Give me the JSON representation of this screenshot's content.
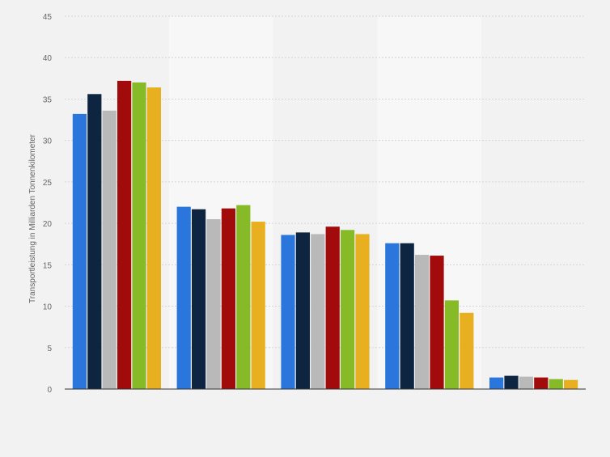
{
  "chart_data": {
    "type": "bar",
    "title": "",
    "xlabel": "",
    "ylabel": "Transportleistung in Milliarden Tonnenkilometer",
    "ylim": [
      0,
      45
    ],
    "yticks": [
      0,
      5,
      10,
      15,
      20,
      25,
      30,
      35,
      40,
      45
    ],
    "grid": true,
    "legend": "none",
    "categories": [
      "",
      "",
      "",
      "",
      ""
    ],
    "series": [
      {
        "color": "#2a76dd",
        "values": [
          33.2,
          22.0,
          18.6,
          17.6,
          1.4
        ]
      },
      {
        "color": "#0d2540",
        "values": [
          35.6,
          21.7,
          18.9,
          17.6,
          1.6
        ]
      },
      {
        "color": "#b9b9b9",
        "values": [
          33.6,
          20.5,
          18.7,
          16.2,
          1.5
        ]
      },
      {
        "color": "#a20b0b",
        "values": [
          37.2,
          21.8,
          19.6,
          16.1,
          1.4
        ]
      },
      {
        "color": "#86ba27",
        "values": [
          37.0,
          22.2,
          19.2,
          10.7,
          1.2
        ]
      },
      {
        "color": "#e8b020",
        "values": [
          36.4,
          20.2,
          18.7,
          9.2,
          1.1
        ]
      }
    ]
  }
}
